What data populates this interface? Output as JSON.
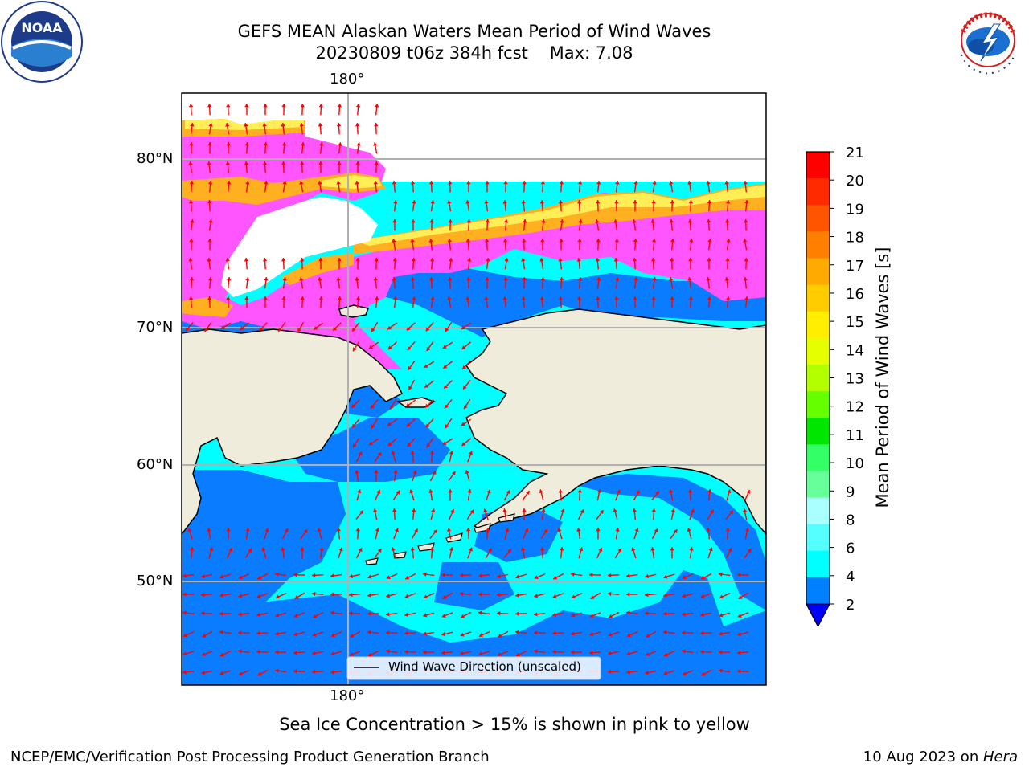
{
  "title": {
    "line1": "GEFS MEAN Alaskan Waters Mean Period of Wind Waves",
    "line2": "20230809 t06z 384h fcst    Max: 7.08"
  },
  "axes": {
    "lon_top": "180°",
    "lon_bottom": "180°",
    "lat_labels": [
      "80°N",
      "70°N",
      "60°N",
      "50°N"
    ]
  },
  "legend": {
    "label": "Wind Wave Direction (unscaled)"
  },
  "colorbar": {
    "label": "Mean Period of Wind Waves [s]",
    "ticks": [
      "21",
      "20",
      "19",
      "18",
      "17",
      "16",
      "15",
      "14",
      "13",
      "12",
      "11",
      "10",
      "9",
      "8",
      "6",
      "4",
      "2"
    ],
    "colors": [
      "#ff0000",
      "#ff2a00",
      "#ff5500",
      "#ff8000",
      "#ffaa00",
      "#ffcc00",
      "#ffee00",
      "#e6ff00",
      "#b3ff00",
      "#66ff00",
      "#00e600",
      "#33ff66",
      "#66ff99",
      "#aaffff",
      "#55ffff",
      "#00ffff",
      "#0080ff"
    ],
    "under_color": "#0000ff"
  },
  "note": "Sea Ice Concentration > 15% is shown in pink to yellow",
  "footer": {
    "left": "NCEP/EMC/Verification Post Processing Product Generation Branch",
    "right_date": "10 Aug 2023 on ",
    "right_machine": "Hera"
  },
  "logos": {
    "noaa": "NOAA",
    "nws": "NATIONAL WEATHER SERVICE"
  },
  "map_colors": {
    "land": "#efecdc",
    "ocean_low": "#0a7cff",
    "ocean_mid": "#00ffff",
    "ice_pink": "#ff55ff",
    "ice_orange": "#ffb020",
    "ice_yellow": "#ffee55",
    "arrow": "#ff0000"
  }
}
